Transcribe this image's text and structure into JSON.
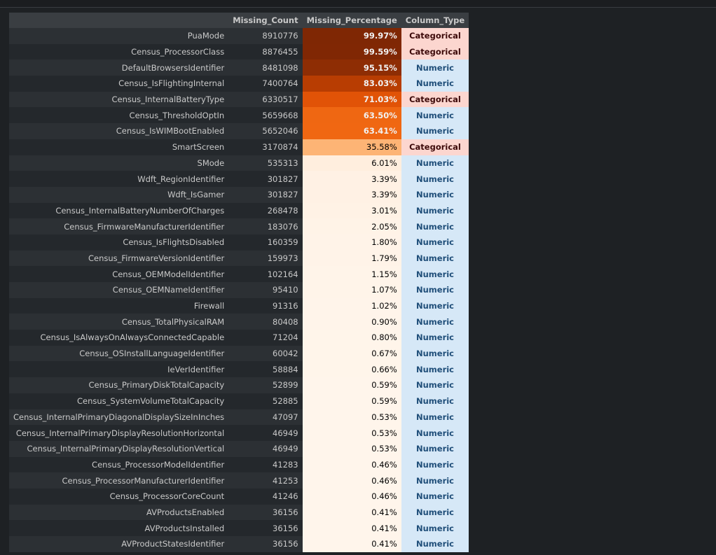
{
  "table": {
    "columns": [
      "Missing_Count",
      "Missing_Percentage",
      "Column_Type"
    ],
    "rows": [
      [
        "PuaMode",
        "8910776",
        "99.97%",
        "Categorical"
      ],
      [
        "Census_ProcessorClass",
        "8876455",
        "99.59%",
        "Categorical"
      ],
      [
        "DefaultBrowsersIdentifier",
        "8481098",
        "95.15%",
        "Numeric"
      ],
      [
        "Census_IsFlightingInternal",
        "7400764",
        "83.03%",
        "Numeric"
      ],
      [
        "Census_InternalBatteryType",
        "6330517",
        "71.03%",
        "Categorical"
      ],
      [
        "Census_ThresholdOptIn",
        "5659668",
        "63.50%",
        "Numeric"
      ],
      [
        "Census_IsWIMBootEnabled",
        "5652046",
        "63.41%",
        "Numeric"
      ],
      [
        "SmartScreen",
        "3170874",
        "35.58%",
        "Categorical"
      ],
      [
        "SMode",
        "535313",
        "6.01%",
        "Numeric"
      ],
      [
        "Wdft_RegionIdentifier",
        "301827",
        "3.39%",
        "Numeric"
      ],
      [
        "Wdft_IsGamer",
        "301827",
        "3.39%",
        "Numeric"
      ],
      [
        "Census_InternalBatteryNumberOfCharges",
        "268478",
        "3.01%",
        "Numeric"
      ],
      [
        "Census_FirmwareManufacturerIdentifier",
        "183076",
        "2.05%",
        "Numeric"
      ],
      [
        "Census_IsFlightsDisabled",
        "160359",
        "1.80%",
        "Numeric"
      ],
      [
        "Census_FirmwareVersionIdentifier",
        "159973",
        "1.79%",
        "Numeric"
      ],
      [
        "Census_OEMModelIdentifier",
        "102164",
        "1.15%",
        "Numeric"
      ],
      [
        "Census_OEMNameIdentifier",
        "95410",
        "1.07%",
        "Numeric"
      ],
      [
        "Firewall",
        "91316",
        "1.02%",
        "Numeric"
      ],
      [
        "Census_TotalPhysicalRAM",
        "80408",
        "0.90%",
        "Numeric"
      ],
      [
        "Census_IsAlwaysOnAlwaysConnectedCapable",
        "71204",
        "0.80%",
        "Numeric"
      ],
      [
        "Census_OSInstallLanguageIdentifier",
        "60042",
        "0.67%",
        "Numeric"
      ],
      [
        "IeVerIdentifier",
        "58884",
        "0.66%",
        "Numeric"
      ],
      [
        "Census_PrimaryDiskTotalCapacity",
        "52899",
        "0.59%",
        "Numeric"
      ],
      [
        "Census_SystemVolumeTotalCapacity",
        "52885",
        "0.59%",
        "Numeric"
      ],
      [
        "Census_InternalPrimaryDiagonalDisplaySizeInInches",
        "47097",
        "0.53%",
        "Numeric"
      ],
      [
        "Census_InternalPrimaryDisplayResolutionHorizontal",
        "46949",
        "0.53%",
        "Numeric"
      ],
      [
        "Census_InternalPrimaryDisplayResolutionVertical",
        "46949",
        "0.53%",
        "Numeric"
      ],
      [
        "Census_ProcessorModelIdentifier",
        "41283",
        "0.46%",
        "Numeric"
      ],
      [
        "Census_ProcessorManufacturerIdentifier",
        "41253",
        "0.46%",
        "Numeric"
      ],
      [
        "Census_ProcessorCoreCount",
        "41246",
        "0.46%",
        "Numeric"
      ],
      [
        "AVProductsEnabled",
        "36156",
        "0.41%",
        "Numeric"
      ],
      [
        "AVProductsInstalled",
        "36156",
        "0.41%",
        "Numeric"
      ],
      [
        "AVProductStatesIdentifier",
        "36156",
        "0.41%",
        "Numeric"
      ]
    ]
  }
}
